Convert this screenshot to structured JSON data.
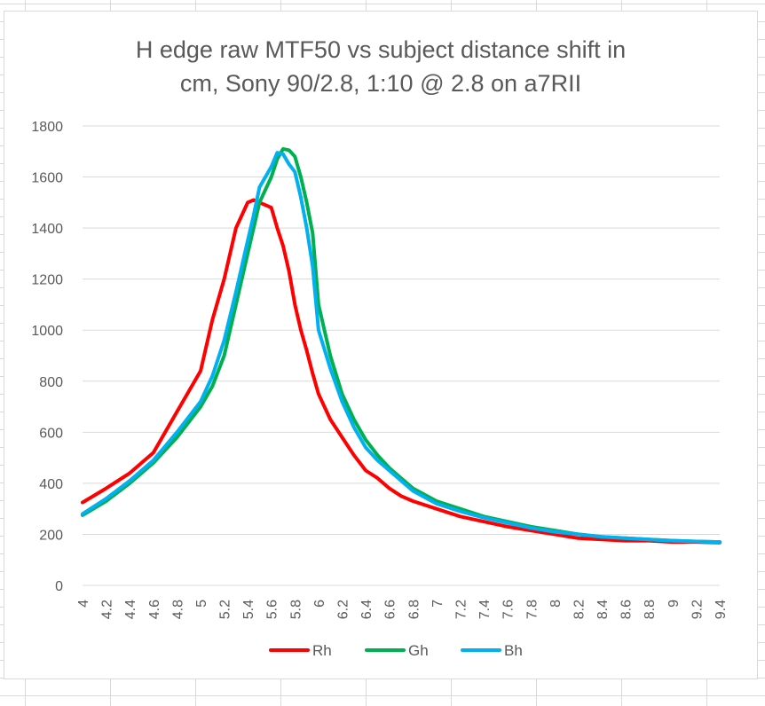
{
  "chart_data": {
    "type": "line",
    "title_lines": [
      "H edge raw MTF50 vs subject distance shift in",
      "cm, Sony 90/2.8, 1:10 @ 2.8 on a7RII"
    ],
    "xlabel": "",
    "ylabel": "",
    "xlim": [
      4,
      9.4
    ],
    "ylim": [
      0,
      1800
    ],
    "y_ticks": [
      0,
      200,
      400,
      600,
      800,
      1000,
      1200,
      1400,
      1600,
      1800
    ],
    "x_ticks": [
      "4",
      "4.2",
      "4.4",
      "4.6",
      "4.8",
      "5",
      "5.2",
      "5.4",
      "5.6",
      "5.8",
      "6",
      "6.2",
      "6.4",
      "6.6",
      "6.8",
      "7",
      "7.2",
      "7.4",
      "7.6",
      "7.8",
      "8",
      "8.2",
      "8.4",
      "8.6",
      "8.8",
      "9",
      "9.2",
      "9.4"
    ],
    "grid": "horizontal",
    "legend_position": "bottom",
    "x": [
      4.0,
      4.2,
      4.4,
      4.6,
      4.8,
      5.0,
      5.1,
      5.2,
      5.3,
      5.4,
      5.45,
      5.5,
      5.6,
      5.65,
      5.7,
      5.75,
      5.8,
      5.85,
      5.9,
      5.95,
      6.0,
      6.1,
      6.2,
      6.3,
      6.4,
      6.5,
      6.6,
      6.7,
      6.8,
      7.0,
      7.2,
      7.4,
      7.6,
      7.8,
      8.0,
      8.2,
      8.4,
      8.6,
      8.8,
      9.0,
      9.2,
      9.4
    ],
    "series": [
      {
        "name": "Rh",
        "color": "#ff0000",
        "values": [
          325,
          380,
          440,
          520,
          680,
          840,
          1040,
          1200,
          1400,
          1500,
          1510,
          1500,
          1480,
          1400,
          1330,
          1230,
          1100,
          1000,
          920,
          830,
          750,
          650,
          580,
          510,
          450,
          420,
          380,
          350,
          330,
          300,
          270,
          250,
          230,
          215,
          200,
          185,
          180,
          175,
          175,
          170,
          170,
          168
        ]
      },
      {
        "name": "Gh",
        "color": "#00b050",
        "values": [
          275,
          330,
          400,
          480,
          580,
          700,
          780,
          900,
          1100,
          1300,
          1400,
          1500,
          1600,
          1670,
          1710,
          1705,
          1680,
          1600,
          1500,
          1380,
          1100,
          900,
          750,
          650,
          570,
          510,
          460,
          420,
          380,
          330,
          300,
          270,
          250,
          230,
          215,
          200,
          190,
          185,
          180,
          175,
          172,
          170
        ]
      },
      {
        "name": "Bh",
        "color": "#00b0f0",
        "values": [
          280,
          340,
          410,
          490,
          600,
          720,
          820,
          960,
          1150,
          1350,
          1450,
          1560,
          1640,
          1695,
          1690,
          1650,
          1620,
          1520,
          1400,
          1250,
          1000,
          850,
          720,
          620,
          540,
          490,
          450,
          410,
          370,
          320,
          290,
          265,
          245,
          225,
          210,
          200,
          190,
          185,
          180,
          175,
          172,
          170
        ]
      }
    ]
  }
}
